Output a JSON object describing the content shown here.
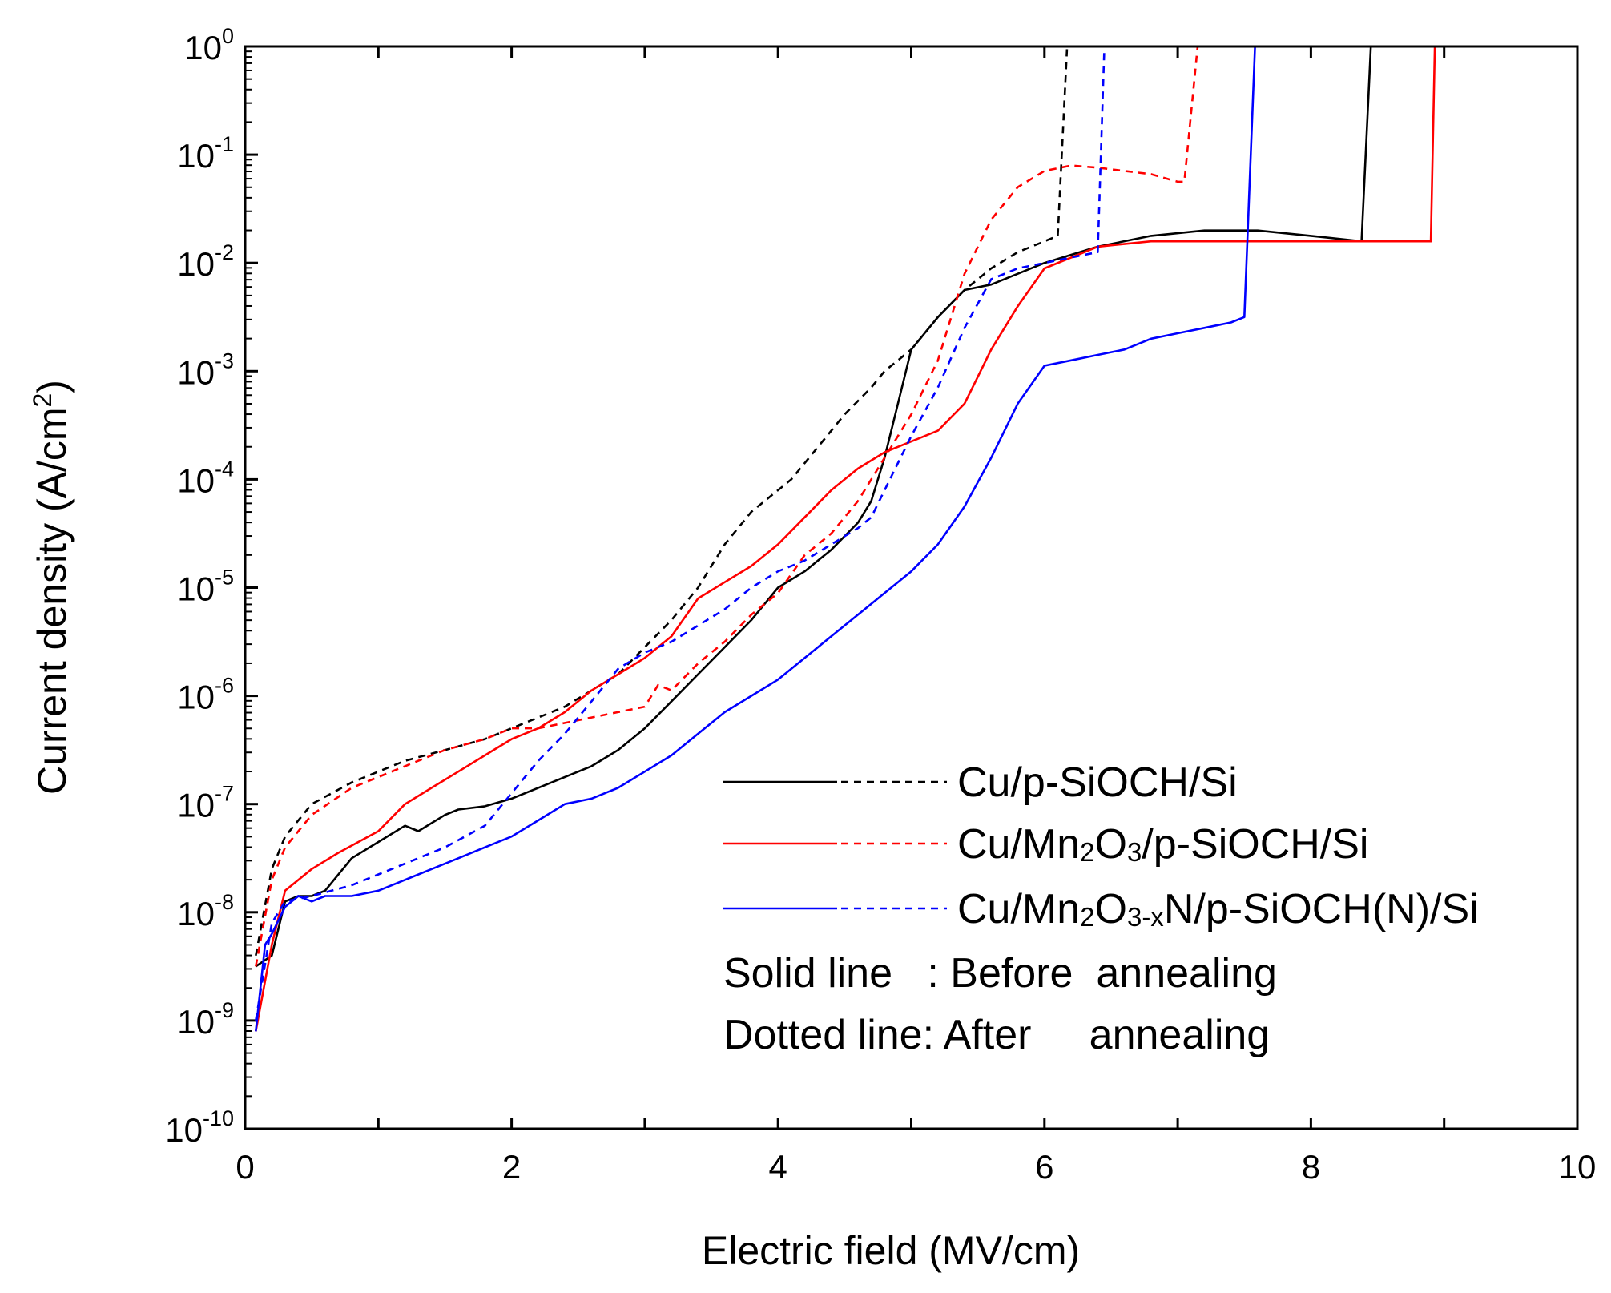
{
  "chart_data": {
    "type": "line",
    "xlabel": "Electric field (MV/cm)",
    "ylabel": {
      "main": "Current density (A/cm",
      "sup": "2",
      "tail": ")"
    },
    "xlim": [
      0,
      10
    ],
    "ylim_exponent": [
      -10,
      0
    ],
    "yscale": "log",
    "x_ticks": [
      "0",
      "2",
      "4",
      "6",
      "8",
      "10"
    ],
    "y_ticks": [
      {
        "base": "10",
        "exp": "0"
      },
      {
        "base": "10",
        "exp": "-1"
      },
      {
        "base": "10",
        "exp": "-2"
      },
      {
        "base": "10",
        "exp": "-3"
      },
      {
        "base": "10",
        "exp": "-4"
      },
      {
        "base": "10",
        "exp": "-5"
      },
      {
        "base": "10",
        "exp": "-6"
      },
      {
        "base": "10",
        "exp": "-7"
      },
      {
        "base": "10",
        "exp": "-8"
      },
      {
        "base": "10",
        "exp": "-9"
      },
      {
        "base": "10",
        "exp": "-10"
      }
    ],
    "legend": {
      "entries": [
        {
          "parts": [
            {
              "t": "Cu/p-SiOCH/Si"
            }
          ],
          "color": "#000000"
        },
        {
          "parts": [
            {
              "t": "Cu/Mn"
            },
            {
              "t": "2",
              "sub": true
            },
            {
              "t": "O"
            },
            {
              "t": "3",
              "sub": true
            },
            {
              "t": "/p-SiOCH/Si"
            }
          ],
          "color": "#ff0000"
        },
        {
          "parts": [
            {
              "t": "Cu/Mn"
            },
            {
              "t": "2",
              "sub": true
            },
            {
              "t": "O"
            },
            {
              "t": "3-x",
              "sub": true
            },
            {
              "t": "N/p-SiOCH(N)/Si"
            }
          ],
          "color": "#0000ff"
        }
      ],
      "notes": [
        "Solid line   : Before  annealing",
        "Dotted line: After     annealing"
      ]
    },
    "series": [
      {
        "name": "Cu/p-SiOCH/Si (before annealing)",
        "color": "#000000",
        "dash": "solid",
        "x": [
          0.08,
          0.2,
          0.3,
          0.4,
          0.5,
          0.6,
          0.8,
          1.0,
          1.2,
          1.3,
          1.5,
          1.6,
          1.8,
          2.0,
          2.2,
          2.4,
          2.6,
          2.8,
          3.0,
          3.2,
          3.4,
          3.6,
          3.8,
          4.0,
          4.2,
          4.4,
          4.6,
          4.7,
          4.8,
          4.9,
          5.0,
          5.2,
          5.4,
          5.6,
          5.8,
          6.0,
          6.4,
          6.8,
          7.2,
          7.6,
          8.0,
          8.38,
          8.45,
          8.5
        ],
        "logy": [
          -8.5,
          -8.4,
          -7.9,
          -7.85,
          -7.85,
          -7.8,
          -7.5,
          -7.35,
          -7.2,
          -7.25,
          -7.1,
          -7.05,
          -7.02,
          -6.95,
          -6.85,
          -6.75,
          -6.65,
          -6.5,
          -6.3,
          -6.05,
          -5.8,
          -5.55,
          -5.3,
          -5.0,
          -4.85,
          -4.65,
          -4.4,
          -4.2,
          -3.8,
          -3.3,
          -2.8,
          -2.5,
          -2.25,
          -2.2,
          -2.1,
          -2.0,
          -1.85,
          -1.75,
          -1.7,
          -1.7,
          -1.75,
          -1.8,
          0.0,
          0.0
        ]
      },
      {
        "name": "Cu/p-SiOCH/Si (after annealing)",
        "color": "#000000",
        "dash": "dashed",
        "x": [
          0.08,
          0.2,
          0.3,
          0.5,
          0.8,
          1.0,
          1.2,
          1.5,
          1.8,
          2.0,
          2.2,
          2.4,
          2.6,
          2.8,
          3.0,
          3.2,
          3.4,
          3.6,
          3.8,
          4.0,
          4.1,
          4.3,
          4.5,
          4.7,
          4.8,
          5.0,
          5.2,
          5.4,
          5.6,
          5.8,
          6.0,
          6.1,
          6.17,
          6.2
        ],
        "logy": [
          -8.4,
          -7.6,
          -7.3,
          -7.0,
          -6.8,
          -6.7,
          -6.6,
          -6.5,
          -6.4,
          -6.3,
          -6.2,
          -6.1,
          -5.95,
          -5.8,
          -5.55,
          -5.3,
          -5.0,
          -4.6,
          -4.3,
          -4.1,
          -4.0,
          -3.7,
          -3.4,
          -3.15,
          -3.0,
          -2.8,
          -2.5,
          -2.25,
          -2.05,
          -1.9,
          -1.8,
          -1.75,
          0.0,
          0.0
        ]
      },
      {
        "name": "Cu/Mn2O3/p-SiOCH/Si (before annealing)",
        "color": "#ff0000",
        "dash": "solid",
        "x": [
          0.08,
          0.2,
          0.3,
          0.5,
          0.7,
          1.0,
          1.2,
          1.4,
          1.6,
          1.8,
          2.0,
          2.2,
          2.4,
          2.6,
          2.8,
          3.0,
          3.2,
          3.4,
          3.6,
          3.8,
          4.0,
          4.2,
          4.4,
          4.6,
          4.8,
          5.0,
          5.2,
          5.4,
          5.5,
          5.6,
          5.8,
          6.0,
          6.4,
          6.8,
          7.2,
          7.6,
          8.0,
          8.4,
          8.9,
          8.93,
          9.0
        ],
        "logy": [
          -9.1,
          -8.3,
          -7.8,
          -7.6,
          -7.45,
          -7.25,
          -7.0,
          -6.85,
          -6.7,
          -6.55,
          -6.4,
          -6.3,
          -6.15,
          -5.95,
          -5.8,
          -5.65,
          -5.45,
          -5.1,
          -4.95,
          -4.8,
          -4.6,
          -4.35,
          -4.1,
          -3.9,
          -3.75,
          -3.65,
          -3.55,
          -3.3,
          -3.05,
          -2.8,
          -2.4,
          -2.05,
          -1.85,
          -1.8,
          -1.8,
          -1.8,
          -1.8,
          -1.8,
          -1.8,
          0.0,
          0.0
        ]
      },
      {
        "name": "Cu/Mn2O3/p-SiOCH/Si (after annealing)",
        "color": "#ff0000",
        "dash": "dashed",
        "x": [
          0.08,
          0.2,
          0.3,
          0.5,
          0.8,
          1.0,
          1.2,
          1.5,
          1.8,
          2.0,
          2.2,
          2.4,
          2.6,
          2.8,
          3.0,
          3.1,
          3.2,
          3.4,
          3.6,
          3.8,
          4.0,
          4.2,
          4.4,
          4.6,
          4.8,
          5.0,
          5.2,
          5.4,
          5.6,
          5.8,
          6.0,
          6.2,
          6.4,
          6.6,
          6.8,
          7.0,
          7.05,
          7.15,
          7.2
        ],
        "logy": [
          -8.5,
          -7.7,
          -7.4,
          -7.1,
          -6.85,
          -6.75,
          -6.65,
          -6.5,
          -6.4,
          -6.3,
          -6.3,
          -6.25,
          -6.2,
          -6.15,
          -6.1,
          -5.9,
          -5.95,
          -5.7,
          -5.5,
          -5.25,
          -5.05,
          -4.7,
          -4.5,
          -4.2,
          -3.8,
          -3.4,
          -2.9,
          -2.1,
          -1.6,
          -1.3,
          -1.15,
          -1.1,
          -1.12,
          -1.15,
          -1.18,
          -1.25,
          -1.25,
          0.0,
          0.0
        ]
      },
      {
        "name": "Cu/Mn2O3-xN/p-SiOCH(N)/Si (before annealing)",
        "color": "#0000ff",
        "dash": "solid",
        "x": [
          0.08,
          0.15,
          0.2,
          0.3,
          0.4,
          0.5,
          0.6,
          0.8,
          1.0,
          1.2,
          1.4,
          1.6,
          1.8,
          2.0,
          2.2,
          2.4,
          2.6,
          2.8,
          3.0,
          3.2,
          3.4,
          3.6,
          3.8,
          4.0,
          4.2,
          4.4,
          4.6,
          4.8,
          5.0,
          5.2,
          5.4,
          5.6,
          5.8,
          6.0,
          6.2,
          6.4,
          6.6,
          6.8,
          7.0,
          7.2,
          7.4,
          7.5,
          7.58,
          7.6
        ],
        "logy": [
          -9.1,
          -8.3,
          -8.2,
          -7.95,
          -7.85,
          -7.9,
          -7.85,
          -7.85,
          -7.8,
          -7.7,
          -7.6,
          -7.5,
          -7.4,
          -7.3,
          -7.15,
          -7.0,
          -6.95,
          -6.85,
          -6.7,
          -6.55,
          -6.35,
          -6.15,
          -6.0,
          -5.85,
          -5.65,
          -5.45,
          -5.25,
          -5.05,
          -4.85,
          -4.6,
          -4.25,
          -3.8,
          -3.3,
          -2.95,
          -2.9,
          -2.85,
          -2.8,
          -2.7,
          -2.65,
          -2.6,
          -2.55,
          -2.5,
          0.0,
          0.0
        ]
      },
      {
        "name": "Cu/Mn2O3-xN/p-SiOCH(N)/Si (after annealing)",
        "color": "#0000ff",
        "dash": "dashed",
        "x": [
          0.08,
          0.2,
          0.3,
          0.5,
          0.8,
          1.0,
          1.2,
          1.5,
          1.8,
          2.0,
          2.2,
          2.4,
          2.6,
          2.8,
          3.0,
          3.2,
          3.4,
          3.6,
          3.8,
          4.0,
          4.2,
          4.4,
          4.6,
          4.7,
          4.8,
          5.0,
          5.2,
          5.4,
          5.6,
          5.8,
          6.0,
          6.2,
          6.4,
          6.45,
          6.5
        ],
        "logy": [
          -9.0,
          -8.1,
          -7.9,
          -7.85,
          -7.75,
          -7.65,
          -7.55,
          -7.4,
          -7.2,
          -6.9,
          -6.6,
          -6.35,
          -6.05,
          -5.75,
          -5.6,
          -5.5,
          -5.35,
          -5.2,
          -5.0,
          -4.85,
          -4.75,
          -4.6,
          -4.45,
          -4.35,
          -4.1,
          -3.6,
          -3.15,
          -2.6,
          -2.15,
          -2.05,
          -2.0,
          -1.95,
          -1.9,
          0.0,
          0.0
        ]
      }
    ]
  }
}
